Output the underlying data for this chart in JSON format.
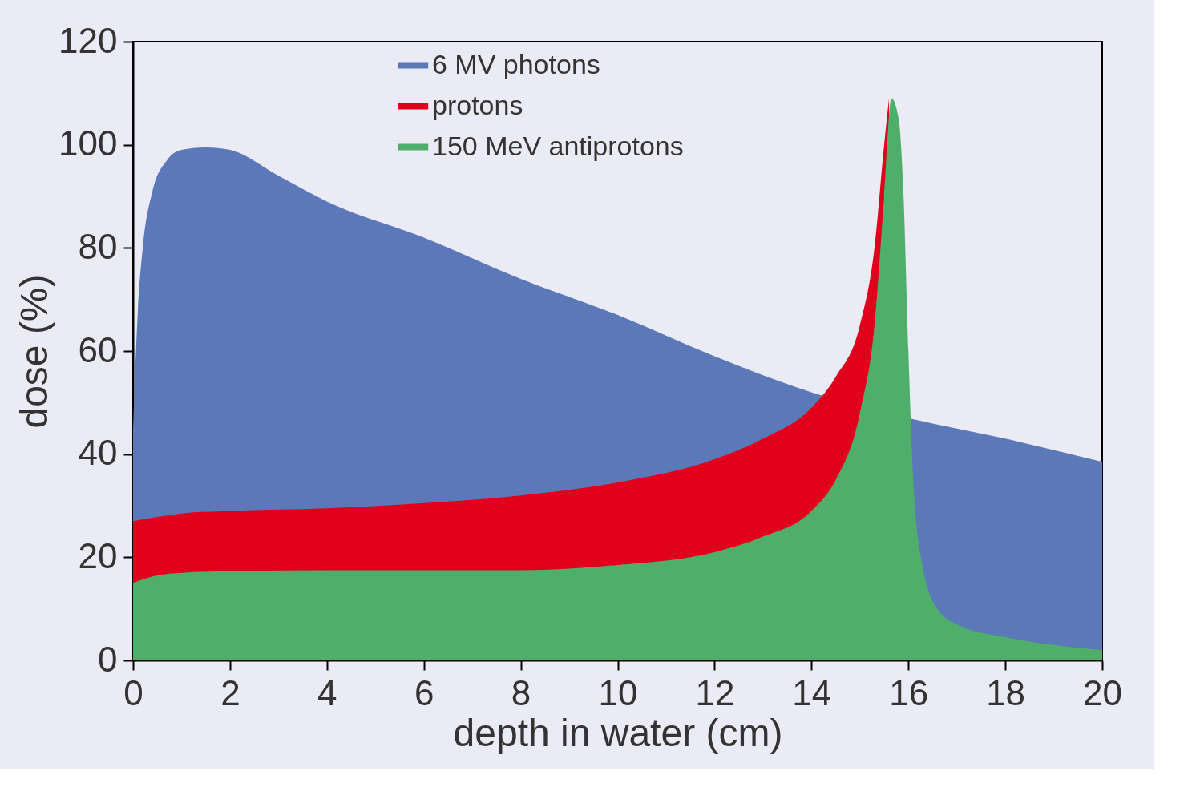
{
  "chart_data": {
    "type": "area",
    "xlabel": "depth in water (cm)",
    "ylabel": "dose (%)",
    "xlim": [
      0,
      20
    ],
    "ylim": [
      0,
      120
    ],
    "xticks": [
      0,
      2,
      4,
      6,
      8,
      10,
      12,
      14,
      16,
      18,
      20
    ],
    "yticks": [
      0,
      20,
      40,
      60,
      80,
      100,
      120
    ],
    "grid": false,
    "legend": "top",
    "series": [
      {
        "name": "6 MV photons",
        "color": "#5b78b8",
        "x": [
          0,
          0.1,
          0.2,
          0.4,
          0.7,
          1,
          1.5,
          2,
          3,
          4,
          6,
          8,
          10,
          12,
          14,
          16,
          18,
          20
        ],
        "values": [
          45,
          68,
          80,
          91,
          97,
          99,
          99.5,
          99,
          94,
          89,
          82,
          74,
          67,
          59,
          52,
          47,
          43,
          38.5
        ]
      },
      {
        "name": "protons",
        "color": "#e0001b",
        "x": [
          0,
          1,
          2,
          4,
          6,
          8,
          10,
          12,
          13,
          14,
          14.5,
          15,
          15.3,
          15.5,
          15.6
        ],
        "values": [
          27,
          28.5,
          29,
          29.5,
          30.5,
          32,
          34.5,
          39,
          43,
          49,
          55,
          65,
          80,
          100,
          109
        ]
      },
      {
        "name": "150 MeV antiprotons",
        "color": "#4fae6a",
        "x": [
          0,
          0.5,
          1,
          2,
          4,
          6,
          8,
          10,
          12,
          13,
          14,
          14.5,
          15,
          15.3,
          15.5,
          15.65,
          15.8,
          15.9,
          16,
          16.1,
          16.3,
          16.6,
          17,
          18,
          19,
          20
        ],
        "values": [
          15,
          16.5,
          17,
          17.3,
          17.5,
          17.5,
          17.5,
          18.5,
          21,
          24,
          29,
          35,
          48,
          65,
          90,
          109,
          105,
          90,
          60,
          35,
          18,
          10,
          7,
          4.5,
          3,
          2
        ]
      }
    ]
  }
}
